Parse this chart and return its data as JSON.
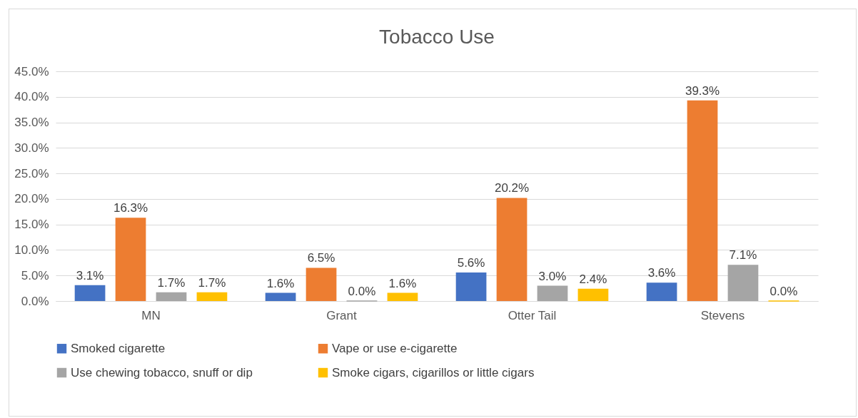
{
  "chart_data": {
    "type": "bar",
    "title": "Tobacco Use",
    "categories": [
      "MN",
      "Grant",
      "Otter Tail",
      "Stevens"
    ],
    "series": [
      {
        "name": "Smoked cigarette",
        "color": "#4472c4",
        "values": [
          3.1,
          1.6,
          5.6,
          3.6
        ],
        "value_labels": [
          "3.1%",
          "1.6%",
          "5.6%",
          "3.6%"
        ]
      },
      {
        "name": "Vape or use e-cigarette",
        "color": "#ed7d31",
        "values": [
          16.3,
          6.5,
          20.2,
          39.3
        ],
        "value_labels": [
          "16.3%",
          "6.5%",
          "20.2%",
          "39.3%"
        ]
      },
      {
        "name": "Use chewing tobacco, snuff or dip",
        "color": "#a5a5a5",
        "values": [
          1.7,
          0.0,
          3.0,
          7.1
        ],
        "value_labels": [
          "1.7%",
          "0.0%",
          "3.0%",
          "7.1%"
        ]
      },
      {
        "name": "Smoke cigars, cigarillos or little cigars",
        "color": "#ffc000",
        "values": [
          1.7,
          1.6,
          2.4,
          0.0
        ],
        "value_labels": [
          "1.7%",
          "1.6%",
          "2.4%",
          "0.0%"
        ]
      }
    ],
    "ylim": [
      0,
      45
    ],
    "yticks": [
      {
        "value": 0,
        "label": "0.0%"
      },
      {
        "value": 5,
        "label": "5.0%"
      },
      {
        "value": 10,
        "label": "10.0%"
      },
      {
        "value": 15,
        "label": "15.0%"
      },
      {
        "value": 20,
        "label": "20.0%"
      },
      {
        "value": 25,
        "label": "25.0%"
      },
      {
        "value": 30,
        "label": "30.0%"
      },
      {
        "value": 35,
        "label": "35.0%"
      },
      {
        "value": 40,
        "label": "40.0%"
      },
      {
        "value": 45,
        "label": "45.0%"
      }
    ],
    "grid": "y",
    "legend": "bottom"
  }
}
